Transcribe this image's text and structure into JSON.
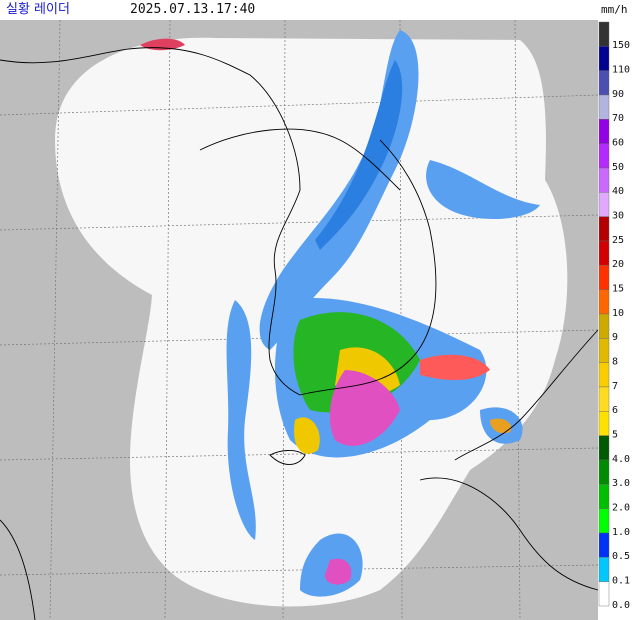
{
  "header": {
    "title": "실황 레이더",
    "time": "2025.07.13.17:40"
  },
  "legend": {
    "unit": "mm/h",
    "items": [
      {
        "label": "150",
        "color": "#333333"
      },
      {
        "label": "110",
        "color": "#000390"
      },
      {
        "label": "90",
        "color": "#4c4eb1"
      },
      {
        "label": "70",
        "color": "#b3b4de"
      },
      {
        "label": "60",
        "color": "#9300e4"
      },
      {
        "label": "50",
        "color": "#b329ff"
      },
      {
        "label": "40",
        "color": "#c969ff"
      },
      {
        "label": "30",
        "color": "#e0a9ff"
      },
      {
        "label": "25",
        "color": "#b40000"
      },
      {
        "label": "20",
        "color": "#d20000"
      },
      {
        "label": "15",
        "color": "#ff3200"
      },
      {
        "label": "10",
        "color": "#ff6600"
      },
      {
        "label": "9",
        "color": "#ccaa00"
      },
      {
        "label": "8",
        "color": "#e0b900"
      },
      {
        "label": "7",
        "color": "#f9cd00"
      },
      {
        "label": "6",
        "color": "#ffdc1f"
      },
      {
        "label": "5",
        "color": "#ffe100"
      },
      {
        "label": "4.0",
        "color": "#005a00"
      },
      {
        "label": "3.0",
        "color": "#008c00"
      },
      {
        "label": "2.0",
        "color": "#00be00"
      },
      {
        "label": "1.0",
        "color": "#00ff00"
      },
      {
        "label": "0.5",
        "color": "#0033f5"
      },
      {
        "label": "0.1",
        "color": "#00c8ff"
      },
      {
        "label": "0.0",
        "color": "#ffffff"
      }
    ]
  }
}
